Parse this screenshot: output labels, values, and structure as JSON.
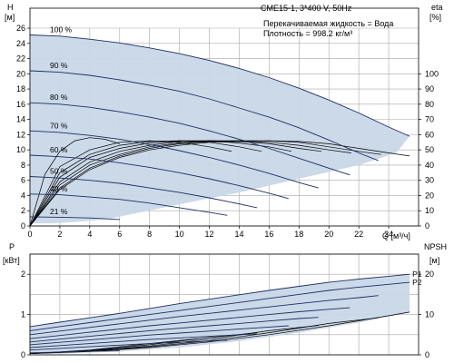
{
  "header": {
    "model": "CME15-1, 3*400 V, 50Hz",
    "fluid": "Перекачиваемая жидкость = Вода",
    "density": "Плотность = 998.2 кг/м³"
  },
  "chart_data": [
    {
      "type": "line",
      "name": "head",
      "ylabel_top": "H",
      "ylabel_unit": "[м]",
      "y2label_top": "eta",
      "y2label_unit": "[%]",
      "xlabel": "Q [м³/ч]",
      "xlim": [
        0,
        26
      ],
      "ylim": [
        0,
        26
      ],
      "y2lim": [
        0,
        130
      ],
      "x_ticks": [
        0,
        2,
        4,
        6,
        8,
        10,
        12,
        14,
        16,
        18,
        20,
        22,
        24
      ],
      "y_ticks": [
        0,
        2,
        4,
        6,
        8,
        10,
        12,
        14,
        16,
        18,
        20,
        22,
        24,
        26
      ],
      "y2_ticks": [
        0,
        10,
        20,
        30,
        40,
        50,
        60,
        70,
        80,
        90,
        100
      ],
      "grid": true,
      "region_color": "#c8d7e8",
      "curve_color": "#1f2f60",
      "operating_region": [
        [
          0,
          25.1
        ],
        [
          2,
          24.95
        ],
        [
          4,
          24.55
        ],
        [
          6,
          24.05
        ],
        [
          8,
          23.4
        ],
        [
          10,
          22.65
        ],
        [
          12,
          21.75
        ],
        [
          14,
          20.7
        ],
        [
          16,
          19.5
        ],
        [
          18,
          18.1
        ],
        [
          20,
          16.55
        ],
        [
          22,
          14.85
        ],
        [
          24,
          13.0
        ],
        [
          25.4,
          11.8
        ],
        [
          24.5,
          9.6
        ],
        [
          22,
          8.0
        ],
        [
          18,
          6.2
        ],
        [
          14,
          4.4
        ],
        [
          10,
          2.85
        ],
        [
          7,
          1.65
        ],
        [
          5.2,
          0.9
        ],
        [
          3.2,
          0.55
        ],
        [
          1.5,
          0.35
        ],
        [
          0.4,
          0.35
        ],
        [
          0,
          0.45
        ]
      ],
      "series": [
        {
          "label": "100 %",
          "x": [
            0,
            2,
            4,
            6,
            8,
            10,
            12,
            14,
            16,
            18,
            20,
            22,
            24,
            25.4
          ],
          "y": [
            25.1,
            24.95,
            24.55,
            24.05,
            23.4,
            22.65,
            21.75,
            20.7,
            19.5,
            18.1,
            16.55,
            14.85,
            13.0,
            11.8
          ]
        },
        {
          "label": "90 %",
          "x": [
            0,
            2,
            4,
            6,
            8,
            10,
            12,
            14,
            16,
            18,
            20,
            22,
            23.3
          ],
          "y": [
            20.4,
            20.2,
            19.8,
            19.2,
            18.5,
            17.7,
            16.7,
            15.5,
            14.3,
            12.9,
            11.3,
            9.6,
            8.6
          ]
        },
        {
          "label": "80 %",
          "x": [
            0,
            2,
            4,
            6,
            8,
            10,
            12,
            14,
            16,
            18,
            20,
            21.4
          ],
          "y": [
            16.2,
            16.0,
            15.6,
            15.0,
            14.3,
            13.5,
            12.5,
            11.4,
            10.2,
            8.9,
            7.6,
            6.7
          ]
        },
        {
          "label": "70 %",
          "x": [
            0,
            2,
            4,
            6,
            8,
            10,
            12,
            14,
            16,
            18,
            19.3
          ],
          "y": [
            12.5,
            12.3,
            11.9,
            11.4,
            10.7,
            9.9,
            9.0,
            8.0,
            6.9,
            5.7,
            5.0
          ]
        },
        {
          "label": "60 %",
          "x": [
            0,
            2,
            4,
            6,
            8,
            10,
            12,
            14,
            16,
            17.3
          ],
          "y": [
            9.3,
            9.1,
            8.8,
            8.3,
            7.7,
            7.0,
            6.2,
            5.3,
            4.3,
            3.6
          ]
        },
        {
          "label": "50 %",
          "x": [
            0,
            2,
            4,
            6,
            8,
            10,
            12,
            14,
            15.2
          ],
          "y": [
            6.5,
            6.3,
            6.0,
            5.6,
            5.0,
            4.4,
            3.7,
            2.9,
            2.4
          ]
        },
        {
          "label": "40 %",
          "x": [
            0,
            2,
            4,
            6,
            8,
            10,
            12,
            13.2
          ],
          "y": [
            4.2,
            4.1,
            3.8,
            3.5,
            3.0,
            2.4,
            1.8,
            1.4
          ]
        },
        {
          "label": "21 %",
          "x": [
            0,
            2,
            4,
            6
          ],
          "y": [
            1.2,
            1.15,
            1.05,
            0.85
          ]
        }
      ],
      "efficiency_series_percent": [
        {
          "x": [
            0,
            2,
            4,
            6,
            8,
            10,
            12,
            14,
            16,
            18,
            20,
            22,
            24,
            25.4
          ],
          "y": [
            0,
            24,
            37,
            45,
            50,
            53,
            55,
            55.5,
            56,
            55.5,
            54,
            51,
            48,
            46
          ]
        },
        {
          "x": [
            0,
            2,
            4,
            6,
            8,
            10,
            12,
            14,
            16,
            18,
            20,
            22,
            23.5
          ],
          "y": [
            0,
            25,
            38,
            46,
            51,
            54,
            55.5,
            56,
            56,
            55,
            52,
            49,
            47
          ]
        },
        {
          "x": [
            0,
            2,
            4,
            6,
            8,
            10,
            12,
            14,
            16,
            18,
            20,
            21.5
          ],
          "y": [
            0,
            27,
            40,
            47,
            52,
            54.5,
            56,
            56,
            55,
            53,
            50,
            48
          ]
        },
        {
          "x": [
            0,
            2,
            4,
            6,
            8,
            10,
            12,
            14,
            16,
            18,
            19.5
          ],
          "y": [
            0,
            29,
            42,
            49,
            53,
            55.5,
            56,
            55.5,
            54,
            51,
            49
          ]
        },
        {
          "x": [
            0,
            2,
            4,
            6,
            8,
            10,
            12,
            14,
            16,
            17.5
          ],
          "y": [
            0,
            32,
            45,
            51,
            54.5,
            56,
            56,
            54.5,
            52,
            49
          ]
        },
        {
          "x": [
            0,
            2,
            4,
            6,
            8,
            10,
            12,
            14,
            15.5
          ],
          "y": [
            0,
            35,
            47,
            53,
            55.5,
            56,
            55,
            52,
            49
          ]
        },
        {
          "x": [
            0,
            2,
            4,
            6,
            8,
            10,
            12,
            13.5
          ],
          "y": [
            0,
            39,
            50,
            55,
            56,
            55,
            52,
            49
          ]
        },
        {
          "x": [
            0,
            1,
            2,
            3,
            4,
            5,
            6
          ],
          "y": [
            0,
            34,
            49,
            56,
            58,
            57,
            54
          ]
        }
      ],
      "annotations": [
        {
          "x": 26.2,
          "y": 11.8,
          "text": ""
        }
      ]
    },
    {
      "type": "line",
      "name": "power-npsh",
      "ylabel_top": "P",
      "ylabel_unit": "[кВт]",
      "y2label_top": "NPSH",
      "y2label_unit": "[м]",
      "xlim": [
        0,
        26
      ],
      "ylim": [
        0,
        2.5
      ],
      "y2lim": [
        0,
        25
      ],
      "y_ticks": [
        0,
        1,
        2
      ],
      "y2_ticks": [
        0,
        10,
        20
      ],
      "grid": true,
      "operating_region": [
        [
          0,
          0.7
        ],
        [
          4,
          0.92
        ],
        [
          8,
          1.15
        ],
        [
          12,
          1.38
        ],
        [
          16,
          1.6
        ],
        [
          20,
          1.8
        ],
        [
          24,
          1.95
        ],
        [
          25.4,
          2.0
        ],
        [
          25.4,
          1.05
        ],
        [
          22,
          0.8
        ],
        [
          18,
          0.55
        ],
        [
          14,
          0.34
        ],
        [
          10,
          0.18
        ],
        [
          6,
          0.08
        ],
        [
          2,
          0.03
        ],
        [
          0,
          0.03
        ]
      ],
      "series": [
        {
          "label": "P1",
          "x": [
            0,
            2,
            4,
            6,
            8,
            10,
            12,
            14,
            16,
            18,
            20,
            22,
            24,
            25.4
          ],
          "y": [
            0.7,
            0.81,
            0.92,
            1.03,
            1.15,
            1.27,
            1.38,
            1.49,
            1.6,
            1.7,
            1.8,
            1.88,
            1.95,
            2.0
          ]
        },
        {
          "label": "P2",
          "x": [
            0,
            2,
            4,
            6,
            8,
            10,
            12,
            14,
            16,
            18,
            20,
            22,
            24,
            25.4
          ],
          "y": [
            0.6,
            0.7,
            0.8,
            0.9,
            1.0,
            1.1,
            1.2,
            1.3,
            1.4,
            1.5,
            1.6,
            1.68,
            1.75,
            1.8
          ]
        },
        {
          "label": "",
          "x": [
            0,
            2,
            4,
            6,
            8,
            10,
            12,
            14,
            16,
            18,
            20,
            22,
            23.3
          ],
          "y": [
            0.5,
            0.59,
            0.68,
            0.77,
            0.86,
            0.95,
            1.03,
            1.11,
            1.19,
            1.27,
            1.35,
            1.42,
            1.47
          ]
        },
        {
          "label": "",
          "x": [
            0,
            2,
            4,
            6,
            8,
            10,
            12,
            14,
            16,
            18,
            20,
            21.4
          ],
          "y": [
            0.4,
            0.48,
            0.56,
            0.64,
            0.72,
            0.79,
            0.86,
            0.93,
            1.0,
            1.07,
            1.13,
            1.17
          ]
        },
        {
          "label": "",
          "x": [
            0,
            2,
            4,
            6,
            8,
            10,
            12,
            14,
            16,
            18,
            19.3
          ],
          "y": [
            0.32,
            0.39,
            0.46,
            0.53,
            0.6,
            0.66,
            0.72,
            0.78,
            0.84,
            0.9,
            0.93
          ]
        },
        {
          "label": "",
          "x": [
            0,
            2,
            4,
            6,
            8,
            10,
            12,
            14,
            16,
            17.3
          ],
          "y": [
            0.25,
            0.31,
            0.37,
            0.43,
            0.49,
            0.54,
            0.59,
            0.64,
            0.69,
            0.72
          ]
        },
        {
          "label": "",
          "x": [
            0,
            2,
            4,
            6,
            8,
            10,
            12,
            14,
            15.2
          ],
          "y": [
            0.18,
            0.23,
            0.28,
            0.33,
            0.38,
            0.42,
            0.46,
            0.5,
            0.52
          ]
        },
        {
          "label": "",
          "x": [
            0,
            2,
            4,
            6,
            8,
            10,
            12,
            13.2
          ],
          "y": [
            0.12,
            0.16,
            0.2,
            0.24,
            0.28,
            0.31,
            0.34,
            0.36
          ]
        },
        {
          "label": "",
          "x": [
            0,
            2,
            4,
            6
          ],
          "y": [
            0.05,
            0.07,
            0.09,
            0.1
          ]
        }
      ],
      "npsh_series_m": [
        {
          "x": [
            0,
            4,
            8,
            12,
            16,
            20,
            24,
            25.4
          ],
          "y": [
            0.3,
            0.8,
            1.8,
            3.2,
            5.0,
            7.2,
            9.7,
            10.6
          ]
        },
        {
          "x": [
            0,
            4,
            8,
            12,
            16,
            20,
            23.3
          ],
          "y": [
            0.3,
            0.9,
            2.0,
            3.5,
            5.5,
            7.8,
            9.2
          ]
        },
        {
          "x": [
            0,
            4,
            8,
            12,
            16,
            19.3
          ],
          "y": [
            0.3,
            1.0,
            2.2,
            3.9,
            6.0,
            7.3
          ]
        },
        {
          "x": [
            0,
            4,
            8,
            12,
            15.2
          ],
          "y": [
            0.3,
            1.1,
            2.5,
            4.3,
            5.5
          ]
        },
        {
          "x": [
            0,
            4,
            8,
            11.2
          ],
          "y": [
            0.3,
            1.2,
            2.8,
            4.0
          ]
        }
      ]
    }
  ]
}
